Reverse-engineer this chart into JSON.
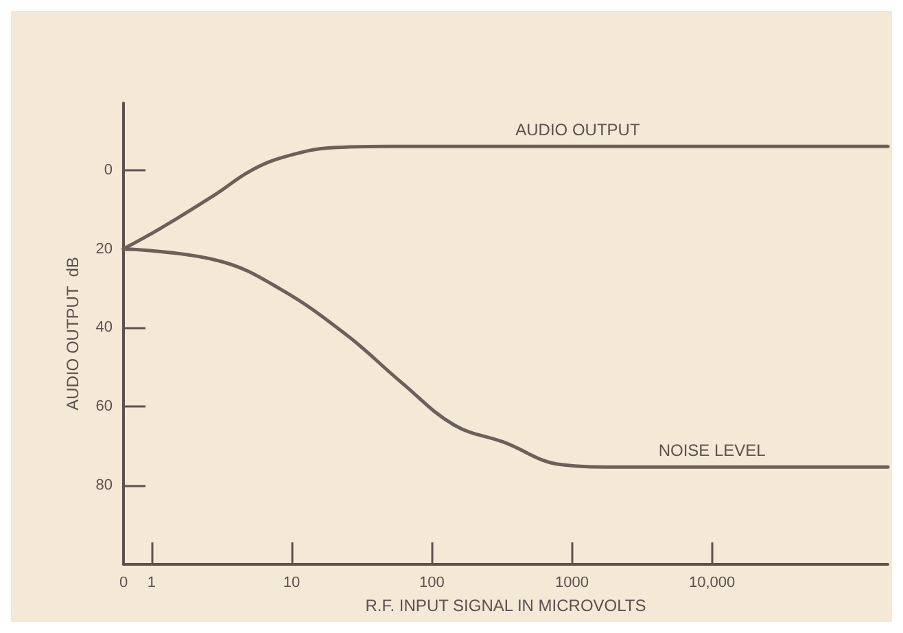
{
  "chart_data": {
    "type": "line",
    "xlabel": "R.F. INPUT SIGNAL IN MICROVOLTS",
    "ylabel": "AUDIO OUTPUT  dB",
    "log": "x",
    "xlim": [
      0,
      180000
    ],
    "xticks": [
      0,
      1,
      10,
      100,
      1000,
      {
        "value": 10000,
        "label": "10,000"
      }
    ],
    "ylim": [
      100,
      -17
    ],
    "yticks": [
      0,
      20,
      40,
      60,
      80
    ],
    "marker": "none",
    "line_style": "solid",
    "series": [
      {
        "name": "AUDIO OUTPUT",
        "color": "#6e5f5a",
        "x": [
          0.63,
          1.17,
          2.8,
          5.4,
          10.4,
          20,
          50,
          1100,
          180000
        ],
        "values": [
          20,
          14.7,
          6.4,
          -0.3,
          -4,
          -5.7,
          -6,
          -6,
          -6
        ]
      },
      {
        "name": "NOISE LEVEL",
        "color": "#6e5f5a",
        "x": [
          0.63,
          3,
          8.4,
          25,
          60,
          145,
          325,
          840,
          2000,
          10000,
          180000
        ],
        "values": [
          20,
          23,
          30.3,
          42,
          53.7,
          64.7,
          69,
          74.7,
          75.3,
          75.3,
          75.3
        ]
      }
    ]
  }
}
